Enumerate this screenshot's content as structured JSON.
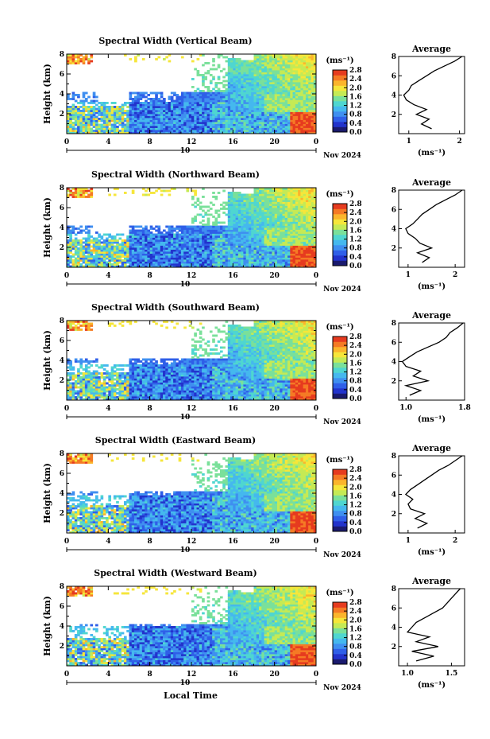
{
  "colors": {
    "colormap": [
      "#1a1a6e",
      "#2233cc",
      "#2f5fe8",
      "#3f8ff0",
      "#45b8ee",
      "#4fd6d0",
      "#7ae09a",
      "#c5ea55",
      "#f6e63a",
      "#fbb52c",
      "#f57a25",
      "#e63b1f"
    ],
    "curve": "#000000"
  },
  "figure": {
    "common_xlabel": "Local Time",
    "date_label": "Nov 2024",
    "day_label": "10"
  },
  "chart_data": [
    {
      "type": "heatmap",
      "title": "Spectral Width (Vertical Beam)",
      "xlabel": "",
      "ylabel": "Height (km)",
      "xlim": [
        0,
        24
      ],
      "ylim": [
        0,
        8
      ],
      "xticks": [
        "0",
        "4",
        "8",
        "12",
        "16",
        "20",
        "0"
      ],
      "yticks": [
        "2",
        "4",
        "6",
        "8"
      ],
      "colorbar": {
        "unit": "(ms⁻¹)",
        "range": [
          0,
          2.8
        ],
        "ticks": [
          "0.0",
          "0.4",
          "0.8",
          "1.2",
          "1.6",
          "2.0",
          "2.4",
          "2.8"
        ]
      },
      "profile": {
        "title": "Average",
        "xlabel": "(ms⁻¹)",
        "xlim": [
          0.8,
          2.1
        ],
        "xticks": [
          {
            "v": 1,
            "t": "1"
          },
          {
            "v": 2,
            "t": "2"
          }
        ],
        "yticks": [
          "2",
          "4",
          "6",
          "8"
        ],
        "heights": [
          0.5,
          1.0,
          1.5,
          2.0,
          2.5,
          3.0,
          3.5,
          4.0,
          4.5,
          5.0,
          5.5,
          6.0,
          6.5,
          7.0,
          7.5,
          8.0
        ],
        "values": [
          1.45,
          1.25,
          1.4,
          1.15,
          1.35,
          1.1,
          0.95,
          0.9,
          1.0,
          1.05,
          1.2,
          1.35,
          1.5,
          1.7,
          1.9,
          2.05
        ]
      }
    },
    {
      "type": "heatmap",
      "title": "Spectral Width (Northward Beam)",
      "xlabel": "",
      "ylabel": "Height (km)",
      "xlim": [
        0,
        24
      ],
      "ylim": [
        0,
        8
      ],
      "xticks": [
        "0",
        "4",
        "8",
        "12",
        "16",
        "20",
        "0"
      ],
      "yticks": [
        "2",
        "4",
        "6",
        "8"
      ],
      "colorbar": {
        "unit": "(ms⁻¹)",
        "range": [
          0,
          2.8
        ],
        "ticks": [
          "0.0",
          "0.4",
          "0.8",
          "1.2",
          "1.6",
          "2.0",
          "2.4",
          "2.8"
        ]
      },
      "profile": {
        "title": "Average",
        "xlabel": "(ms⁻¹)",
        "xlim": [
          0.8,
          2.2
        ],
        "xticks": [
          {
            "v": 1,
            "t": "1"
          },
          {
            "v": 2,
            "t": "2"
          }
        ],
        "yticks": [
          "2",
          "4",
          "6",
          "8"
        ],
        "heights": [
          0.5,
          1.0,
          1.5,
          2.0,
          2.5,
          3.0,
          3.5,
          4.0,
          4.5,
          5.0,
          5.5,
          6.0,
          6.5,
          7.0,
          7.5,
          8.0
        ],
        "values": [
          1.3,
          1.45,
          1.2,
          1.5,
          1.25,
          1.15,
          1.0,
          0.95,
          1.1,
          1.2,
          1.3,
          1.45,
          1.6,
          1.8,
          2.0,
          2.15
        ]
      }
    },
    {
      "type": "heatmap",
      "title": "Spectral Width (Southward Beam)",
      "xlabel": "",
      "ylabel": "Height (km)",
      "xlim": [
        0,
        24
      ],
      "ylim": [
        0,
        8
      ],
      "xticks": [
        "0",
        "4",
        "8",
        "12",
        "16",
        "20",
        "0"
      ],
      "yticks": [
        "2",
        "4",
        "6",
        "8"
      ],
      "colorbar": {
        "unit": "(ms⁻¹)",
        "range": [
          0,
          2.8
        ],
        "ticks": [
          "0.0",
          "0.4",
          "0.8",
          "1.2",
          "1.6",
          "2.0",
          "2.4",
          "2.8"
        ]
      },
      "profile": {
        "title": "Average",
        "xlabel": "(ms⁻¹)",
        "xlim": [
          0.9,
          1.8
        ],
        "xticks": [
          {
            "v": 1,
            "t": "1.0"
          },
          {
            "v": 1.8,
            "t": "1.8"
          }
        ],
        "yticks": [
          "2",
          "4",
          "6",
          "8"
        ],
        "heights": [
          0.5,
          1.0,
          1.5,
          2.0,
          2.5,
          3.0,
          3.5,
          4.0,
          4.5,
          5.0,
          5.5,
          6.0,
          6.5,
          7.0,
          7.5,
          8.0
        ],
        "values": [
          1.05,
          1.2,
          1.0,
          1.3,
          1.1,
          1.2,
          1.0,
          0.95,
          1.05,
          1.15,
          1.3,
          1.45,
          1.55,
          1.6,
          1.7,
          1.78
        ]
      }
    },
    {
      "type": "heatmap",
      "title": "Spectral Width (Eastward Beam)",
      "xlabel": "",
      "ylabel": "Height (km)",
      "xlim": [
        0,
        24
      ],
      "ylim": [
        0,
        8
      ],
      "xticks": [
        "0",
        "4",
        "8",
        "12",
        "16",
        "20",
        "0"
      ],
      "yticks": [
        "2",
        "4",
        "6",
        "8"
      ],
      "colorbar": {
        "unit": "(ms⁻¹)",
        "range": [
          0,
          2.8
        ],
        "ticks": [
          "0.0",
          "0.4",
          "0.8",
          "1.2",
          "1.6",
          "2.0",
          "2.4",
          "2.8"
        ]
      },
      "profile": {
        "title": "Average",
        "xlabel": "(ms⁻¹)",
        "xlim": [
          0.8,
          2.2
        ],
        "xticks": [
          {
            "v": 1,
            "t": "1"
          },
          {
            "v": 2,
            "t": "2"
          }
        ],
        "yticks": [
          "2",
          "4",
          "6",
          "8"
        ],
        "heights": [
          0.5,
          1.0,
          1.5,
          2.0,
          2.5,
          3.0,
          3.5,
          4.0,
          4.5,
          5.0,
          5.5,
          6.0,
          6.5,
          7.0,
          7.5,
          8.0
        ],
        "values": [
          1.2,
          1.4,
          1.15,
          1.35,
          1.05,
          1.0,
          1.1,
          0.95,
          1.05,
          1.2,
          1.35,
          1.5,
          1.65,
          1.85,
          2.0,
          2.15
        ]
      }
    },
    {
      "type": "heatmap",
      "title": "Spectral Width (Westward Beam)",
      "xlabel": "",
      "ylabel": "Height (km)",
      "xlim": [
        0,
        24
      ],
      "ylim": [
        0,
        8
      ],
      "xticks": [
        "0",
        "4",
        "8",
        "12",
        "16",
        "20",
        "0"
      ],
      "yticks": [
        "2",
        "4",
        "6",
        "8"
      ],
      "colorbar": {
        "unit": "(ms⁻¹)",
        "range": [
          0,
          2.8
        ],
        "ticks": [
          "0.0",
          "0.4",
          "0.8",
          "1.2",
          "1.6",
          "2.0",
          "2.4",
          "2.8"
        ]
      },
      "profile": {
        "title": "Average",
        "xlabel": "(ms⁻¹)",
        "xlim": [
          0.9,
          1.65
        ],
        "xticks": [
          {
            "v": 1,
            "t": "1.0"
          },
          {
            "v": 1.5,
            "t": "1.5"
          }
        ],
        "yticks": [
          "2",
          "4",
          "6",
          "8"
        ],
        "heights": [
          0.5,
          1.0,
          1.5,
          2.0,
          2.5,
          3.0,
          3.5,
          4.0,
          4.5,
          5.0,
          5.5,
          6.0,
          6.5,
          7.0,
          7.5,
          8.0
        ],
        "values": [
          1.1,
          1.3,
          1.05,
          1.35,
          1.1,
          1.25,
          1.0,
          1.05,
          1.1,
          1.2,
          1.3,
          1.4,
          1.45,
          1.5,
          1.55,
          1.6
        ]
      }
    }
  ]
}
